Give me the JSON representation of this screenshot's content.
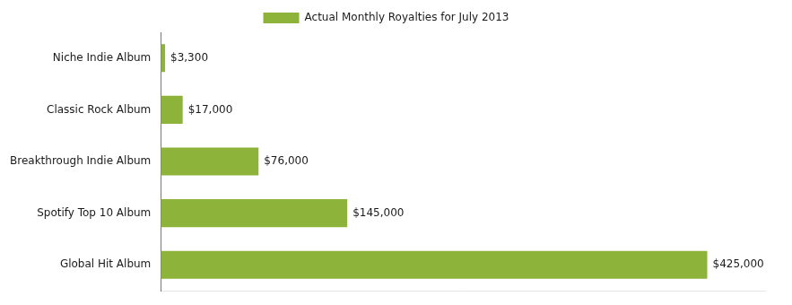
{
  "chart_data": {
    "type": "bar",
    "orientation": "horizontal",
    "categories": [
      "Global Hit Album",
      "Spotify Top 10 Album",
      "Breakthrough Indie Album",
      "Classic Rock Album",
      "Niche Indie Album"
    ],
    "series": [
      {
        "name": "Actual Monthly Royalties for July 2013",
        "color": "#8db33a",
        "values": [
          425000,
          145000,
          76000,
          17000,
          3300
        ],
        "value_labels": [
          "$425,000",
          "$145,000",
          "$76,000",
          "$17,000",
          "$3,300"
        ]
      }
    ],
    "xlim": [
      0,
      470000
    ],
    "data_labels": true,
    "tick_labels": "y",
    "grid": false,
    "legend": "top"
  }
}
